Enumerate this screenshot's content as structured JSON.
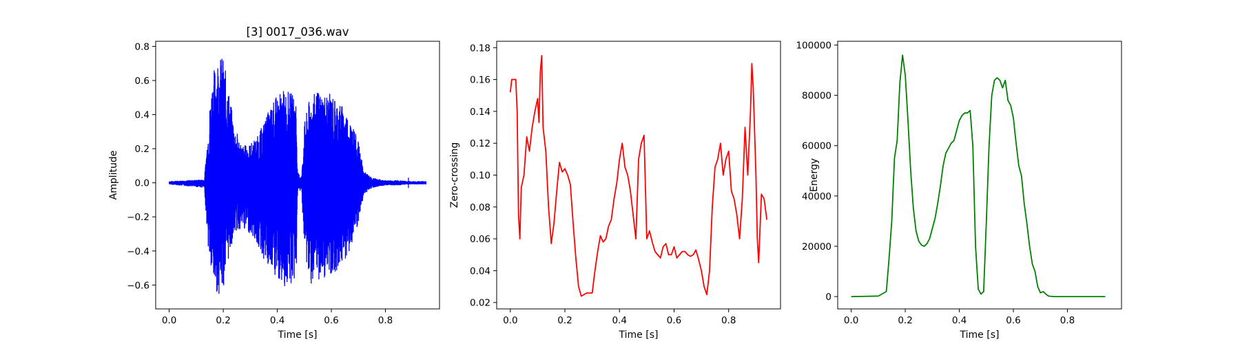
{
  "chart_data": [
    {
      "type": "line",
      "title": "[3] 0017_036.wav",
      "xlabel": "Time [s]",
      "ylabel": "Amplitude",
      "xlim": [
        -0.05,
        1.0
      ],
      "ylim": [
        -0.74,
        0.83
      ],
      "xticks": [
        0.0,
        0.2,
        0.4,
        0.6,
        0.8
      ],
      "yticks": [
        -0.6,
        -0.4,
        -0.2,
        0.0,
        0.2,
        0.4,
        0.6,
        0.8
      ],
      "color": "#0000ff",
      "grid": false,
      "envelope": {
        "x": [
          0.0,
          0.13,
          0.145,
          0.16,
          0.18,
          0.2,
          0.22,
          0.24,
          0.27,
          0.3,
          0.33,
          0.36,
          0.4,
          0.43,
          0.46,
          0.47,
          0.475,
          0.49,
          0.5,
          0.52,
          0.55,
          0.6,
          0.64,
          0.67,
          0.7,
          0.72,
          0.75,
          0.8,
          0.85,
          0.88,
          0.9,
          0.95
        ],
        "upper": [
          0.01,
          0.02,
          0.35,
          0.64,
          0.75,
          0.74,
          0.55,
          0.34,
          0.22,
          0.23,
          0.28,
          0.4,
          0.52,
          0.55,
          0.52,
          0.5,
          0.06,
          0.04,
          0.35,
          0.5,
          0.54,
          0.52,
          0.46,
          0.38,
          0.24,
          0.07,
          0.03,
          0.015,
          0.015,
          0.01,
          0.01,
          0.01
        ],
        "lower": [
          -0.01,
          -0.03,
          -0.4,
          -0.6,
          -0.66,
          -0.62,
          -0.45,
          -0.3,
          -0.27,
          -0.3,
          -0.38,
          -0.5,
          -0.58,
          -0.62,
          -0.6,
          -0.55,
          -0.05,
          -0.05,
          -0.4,
          -0.6,
          -0.58,
          -0.55,
          -0.48,
          -0.4,
          -0.25,
          -0.07,
          -0.03,
          -0.015,
          -0.015,
          -0.01,
          -0.01,
          -0.01
        ]
      }
    },
    {
      "type": "line",
      "title": "",
      "xlabel": "Time [s]",
      "ylabel": "Zero-crossing",
      "xlim": [
        -0.05,
        0.99
      ],
      "ylim": [
        0.016,
        0.184
      ],
      "xticks": [
        0.0,
        0.2,
        0.4,
        0.6,
        0.8
      ],
      "yticks": [
        0.02,
        0.04,
        0.06,
        0.08,
        0.1,
        0.12,
        0.14,
        0.16,
        0.18
      ],
      "color": "#ff0000",
      "grid": false,
      "series": [
        {
          "x": [
            0.0,
            0.005,
            0.01,
            0.02,
            0.025,
            0.03,
            0.035,
            0.04,
            0.05,
            0.06,
            0.07,
            0.08,
            0.09,
            0.1,
            0.105,
            0.11,
            0.115,
            0.12,
            0.13,
            0.14,
            0.15,
            0.16,
            0.17,
            0.18,
            0.19,
            0.2,
            0.21,
            0.22,
            0.23,
            0.24,
            0.25,
            0.26,
            0.27,
            0.28,
            0.29,
            0.3,
            0.31,
            0.32,
            0.33,
            0.34,
            0.35,
            0.36,
            0.37,
            0.38,
            0.39,
            0.4,
            0.41,
            0.42,
            0.43,
            0.44,
            0.45,
            0.46,
            0.47,
            0.48,
            0.49,
            0.5,
            0.51,
            0.52,
            0.53,
            0.54,
            0.55,
            0.56,
            0.57,
            0.58,
            0.59,
            0.6,
            0.61,
            0.62,
            0.63,
            0.64,
            0.65,
            0.66,
            0.67,
            0.68,
            0.69,
            0.7,
            0.71,
            0.72,
            0.73,
            0.74,
            0.75,
            0.76,
            0.77,
            0.78,
            0.79,
            0.8,
            0.81,
            0.82,
            0.83,
            0.84,
            0.85,
            0.86,
            0.87,
            0.88,
            0.885,
            0.89,
            0.9,
            0.905,
            0.91,
            0.92,
            0.93,
            0.94
          ],
          "y": [
            0.152,
            0.16,
            0.16,
            0.16,
            0.14,
            0.075,
            0.06,
            0.092,
            0.1,
            0.124,
            0.115,
            0.13,
            0.14,
            0.148,
            0.133,
            0.165,
            0.175,
            0.13,
            0.115,
            0.08,
            0.057,
            0.07,
            0.09,
            0.108,
            0.102,
            0.104,
            0.1,
            0.094,
            0.07,
            0.048,
            0.03,
            0.024,
            0.025,
            0.026,
            0.026,
            0.026,
            0.04,
            0.052,
            0.062,
            0.058,
            0.06,
            0.068,
            0.072,
            0.085,
            0.095,
            0.11,
            0.12,
            0.105,
            0.1,
            0.09,
            0.075,
            0.06,
            0.11,
            0.12,
            0.125,
            0.06,
            0.065,
            0.058,
            0.052,
            0.05,
            0.048,
            0.055,
            0.057,
            0.05,
            0.05,
            0.055,
            0.048,
            0.05,
            0.052,
            0.052,
            0.05,
            0.049,
            0.05,
            0.053,
            0.047,
            0.04,
            0.03,
            0.025,
            0.04,
            0.08,
            0.105,
            0.11,
            0.12,
            0.1,
            0.11,
            0.115,
            0.09,
            0.085,
            0.075,
            0.06,
            0.085,
            0.13,
            0.1,
            0.14,
            0.17,
            0.155,
            0.1,
            0.06,
            0.045,
            0.088,
            0.085,
            0.072
          ]
        }
      ]
    },
    {
      "type": "line",
      "title": "",
      "xlabel": "Time [s]",
      "ylabel": "Energy",
      "xlim": [
        -0.05,
        1.0
      ],
      "ylim": [
        -4900,
        101500
      ],
      "xticks": [
        0.0,
        0.2,
        0.4,
        0.6,
        0.8
      ],
      "yticks": [
        0,
        20000,
        40000,
        60000,
        80000,
        100000
      ],
      "color": "#008000",
      "grid": false,
      "series": [
        {
          "x": [
            0.0,
            0.1,
            0.13,
            0.14,
            0.15,
            0.16,
            0.17,
            0.18,
            0.19,
            0.2,
            0.21,
            0.22,
            0.23,
            0.24,
            0.25,
            0.26,
            0.27,
            0.28,
            0.29,
            0.3,
            0.31,
            0.32,
            0.33,
            0.34,
            0.35,
            0.36,
            0.37,
            0.38,
            0.39,
            0.4,
            0.41,
            0.42,
            0.43,
            0.44,
            0.45,
            0.46,
            0.47,
            0.48,
            0.49,
            0.5,
            0.51,
            0.52,
            0.53,
            0.54,
            0.55,
            0.56,
            0.57,
            0.58,
            0.59,
            0.6,
            0.61,
            0.62,
            0.63,
            0.64,
            0.65,
            0.66,
            0.67,
            0.68,
            0.69,
            0.7,
            0.71,
            0.72,
            0.73,
            0.75,
            0.8,
            0.94
          ],
          "y": [
            0,
            200,
            2000,
            15000,
            30000,
            55000,
            62000,
            85000,
            96000,
            88000,
            70000,
            50000,
            35000,
            26000,
            22000,
            20500,
            20000,
            21000,
            23000,
            27000,
            31000,
            37000,
            44000,
            52000,
            57000,
            59000,
            61000,
            62000,
            66000,
            70000,
            72000,
            73000,
            73000,
            74000,
            60000,
            20000,
            3000,
            1000,
            2000,
            30000,
            60000,
            80000,
            86000,
            87000,
            86000,
            83000,
            86000,
            78000,
            76000,
            71000,
            61000,
            52000,
            48000,
            37000,
            29000,
            20000,
            13000,
            10000,
            4000,
            1500,
            2000,
            1000,
            200,
            0,
            0,
            0
          ]
        }
      ]
    }
  ]
}
